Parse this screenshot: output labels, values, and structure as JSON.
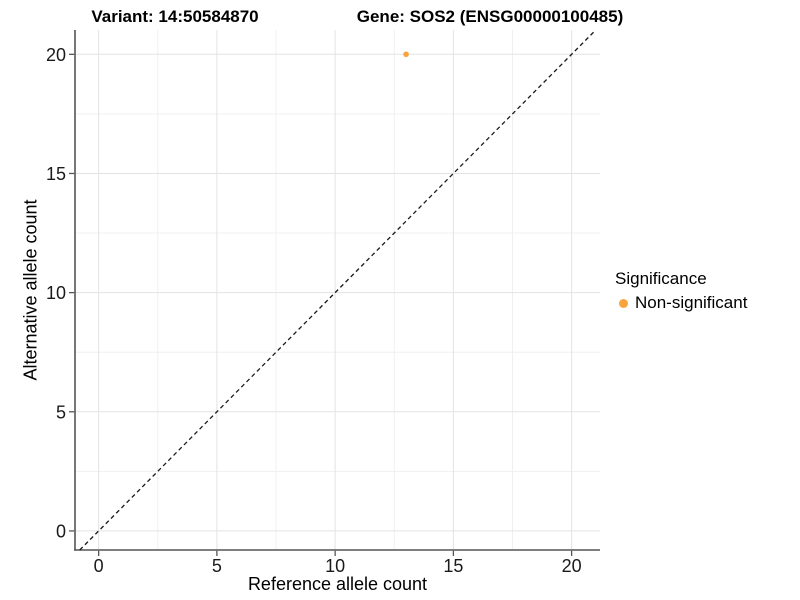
{
  "chart_data": {
    "type": "scatter",
    "titles": {
      "left": "Variant: 14:50584870",
      "right": "Gene: SOS2 (ENSG00000100485)"
    },
    "xlabel": "Reference allele count",
    "ylabel": "Alternative allele count",
    "xlim": [
      -1.0,
      21.2
    ],
    "ylim": [
      -0.8,
      21.02
    ],
    "xticks": [
      0,
      5,
      10,
      15,
      20
    ],
    "yticks": [
      0,
      5,
      10,
      15,
      20
    ],
    "x_minor_ticks": [
      2.5,
      7.5,
      12.5,
      17.5
    ],
    "y_minor_ticks": [
      2.5,
      7.5,
      12.5,
      17.5
    ],
    "grid": {
      "on": true,
      "major_color": "#E3E3E3",
      "minor_color": "#F0F0F0"
    },
    "axis": {
      "line_color": "#555555",
      "tick_color": "#555555",
      "tick_label_color": "#1A1A1A"
    },
    "reference_line": {
      "kind": "identity y=x",
      "style": "dashed",
      "color": "#1A1A1A"
    },
    "series": [
      {
        "name": "Non-significant",
        "color": "#F9A33C",
        "points": [
          {
            "x": 13,
            "y": 20
          }
        ]
      }
    ],
    "legend": {
      "title": "Significance",
      "position": "right",
      "items": [
        {
          "label": "Non-significant",
          "color": "#F9A33C",
          "marker": "circle"
        }
      ]
    }
  }
}
